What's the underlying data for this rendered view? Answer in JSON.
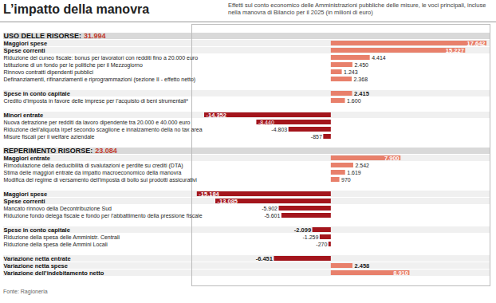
{
  "chart_data": {
    "type": "bar",
    "orientation": "horizontal",
    "title": "L’impatto della manovra",
    "subtitle": "Effetti sul conto economico delle Amministrazioni pubbliche delle misure, le voci principali, incluse nella manovra di Bilancio per il 2025 (in milioni di euro)",
    "source": "Fonte: Ragioneria",
    "xlim": [
      -15800,
      18000
    ],
    "tick_labels": false,
    "data_labels": true,
    "sections": [
      {
        "title": "USO DELLE RISORSE:",
        "total": "31.994",
        "rows": [
          {
            "label": "Maggiori spese",
            "value": 17642,
            "value_label": "17.642",
            "color": "#e8806b",
            "children": [
              {
                "label": "Spese correnti",
                "value": 15227,
                "value_label": "15.227",
                "color": "#e8806b",
                "children": [
                  {
                    "label": "Riduzione del cuneo fiscale: bonus per lavoratori con redditi fino a 20.000 euro",
                    "value": 4414,
                    "value_label": "4.414",
                    "color": "#e8806b"
                  },
                  {
                    "label": "Istituzione di un fondo per le politiche per il Mezzogiorno",
                    "value": 2450,
                    "value_label": "2.450",
                    "color": "#e8806b"
                  },
                  {
                    "label": "Rinnovo contratti dipendenti pubblici",
                    "value": 1243,
                    "value_label": "1.243",
                    "color": "#e8806b"
                  },
                  {
                    "label": "Definanziamenti, rifinanziamenti e riprogrammazioni (sezione II - effetto netto)",
                    "value": 2368,
                    "value_label": "2.368",
                    "color": "#e8806b"
                  }
                ]
              },
              {
                "label": "Spese in conto capitale",
                "value": 2415,
                "value_label": "2.415",
                "color": "#e8806b",
                "children": [
                  {
                    "label": "Credito d’imposta in favore delle imprese per l’acquisto di beni strumentali*",
                    "value": 1600,
                    "value_label": "1.600",
                    "color": "#e8806b"
                  }
                ]
              }
            ]
          },
          {
            "label": "Minori entrate",
            "value": -14352,
            "value_label": "-14.352",
            "color": "#a3151c",
            "children": [
              {
                "label": "Nuova detrazione per redditi da lavoro dipendente tra 20.000 e 40.000 euro",
                "value": -8440,
                "value_label": "-8.440",
                "color": "#a3151c"
              },
              {
                "label": "Riduzione dell’aliquota Irpef secondo scaglione e innalzamento della no tax area",
                "value": -4803,
                "value_label": "-4.803",
                "color": "#a3151c"
              },
              {
                "label": "Misure fiscali per il welfare aziendale",
                "value": -857,
                "value_label": "-857",
                "color": "#a3151c"
              }
            ]
          }
        ]
      },
      {
        "title": "REPERIMENTO RISORSE:",
        "total": "23.084",
        "rows": [
          {
            "label": "Maggiori entrate",
            "value": 7900,
            "value_label": "7.900",
            "color": "#e8806b",
            "children": [
              {
                "label": "Rimodulazione della deducibilità di svalutazioni e perdite su crediti (DTA)",
                "value": 2542,
                "value_label": "2.542",
                "color": "#e8806b"
              },
              {
                "label": "Stima delle maggiori entrate da impatto macroeconomico della manovra",
                "value": 1619,
                "value_label": "1.619",
                "color": "#e8806b"
              },
              {
                "label": "Modifica del regime di versamento dell’imposta di bollo sui prodotti assicurativi",
                "value": 970,
                "value_label": "970",
                "color": "#e8806b"
              }
            ]
          },
          {
            "label": "Maggiori spese",
            "value": -15184,
            "value_label": "-15.184",
            "color": "#a3151c",
            "children": [
              {
                "label": "Spese correnti",
                "value": -13085,
                "value_label": "-13.085",
                "color": "#a3151c",
                "children": [
                  {
                    "label": "Mancato rinnovo della Decontribuzione Sud",
                    "value": -5902,
                    "value_label": "-5.902",
                    "color": "#a3151c"
                  },
                  {
                    "label": "Riduzione fondo delega fiscale e fondo per l’abbattimento della pressione fiscale",
                    "value": -5601,
                    "value_label": "-5.601",
                    "color": "#a3151c"
                  }
                ]
              },
              {
                "label": "Spese in conto capitale",
                "value": -2099,
                "value_label": "-2.099",
                "color": "#a3151c",
                "children": [
                  {
                    "label": "Riduzione della spesa delle Amministr. Centrali",
                    "value": -1259,
                    "value_label": "-1.259",
                    "color": "#a3151c"
                  },
                  {
                    "label": "Riduzione della spesa delle Ammini Locali",
                    "value": -270,
                    "value_label": "-270",
                    "color": "#a3151c"
                  }
                ]
              }
            ]
          },
          {
            "label": "Variazione netta entrate",
            "value": -6451,
            "value_label": "-6.451",
            "color": "#a3151c"
          },
          {
            "label": "Variazione netta spese",
            "value": 2458,
            "value_label": "2.458",
            "color": "#e8806b"
          },
          {
            "label": "Variazione dell’indebitamento netto",
            "value": 8910,
            "value_label": "8.910",
            "color": "#e8806b"
          }
        ]
      }
    ]
  }
}
